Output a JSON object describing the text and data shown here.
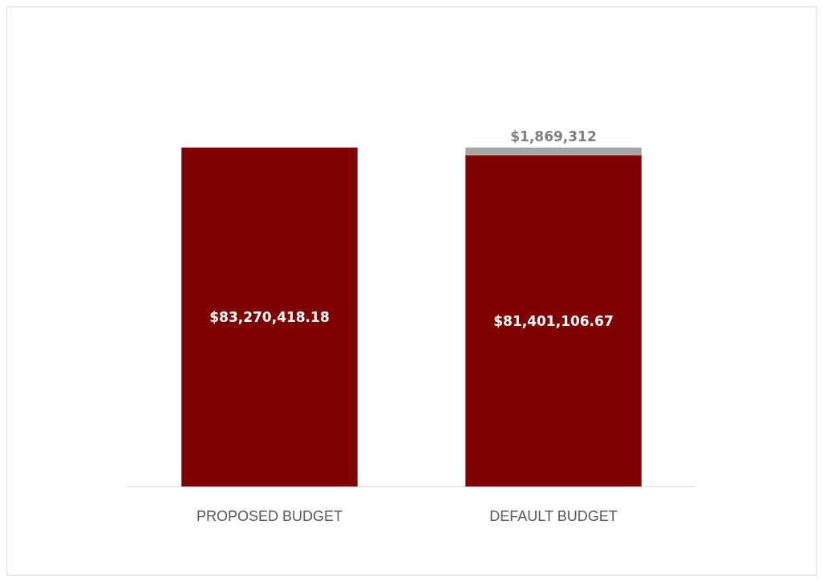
{
  "chart_data": {
    "type": "bar",
    "stacked": true,
    "categories": [
      "PROPOSED BUDGET",
      "DEFAULT BUDGET"
    ],
    "series": [
      {
        "color": "#7f0000",
        "values": [
          83270418.18,
          81401106.67
        ],
        "value_labels": [
          "$83,270,418.18",
          "$81,401,106.67"
        ]
      },
      {
        "color": "#a6a6a6",
        "values": [
          null,
          1869312
        ],
        "value_labels": [
          null,
          "$1,869,312"
        ]
      }
    ]
  }
}
